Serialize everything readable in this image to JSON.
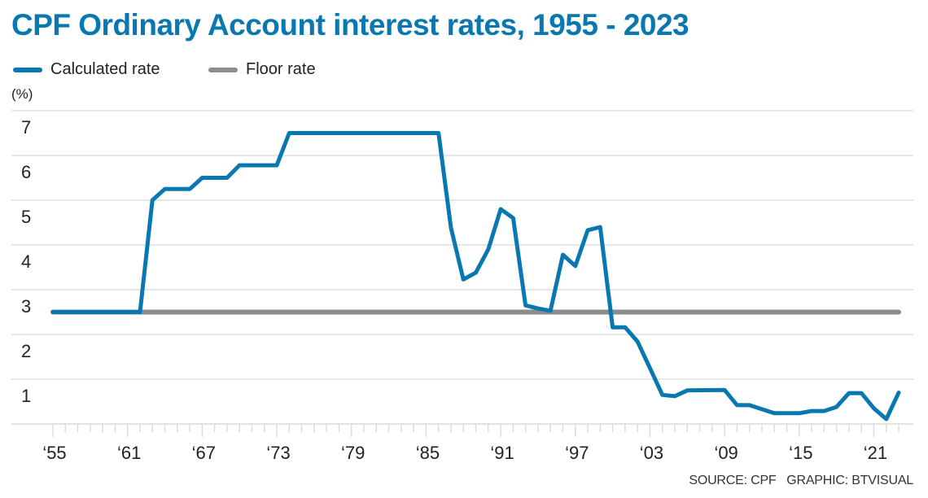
{
  "chart_data": {
    "type": "line",
    "title": "CPF Ordinary Account interest rates, 1955 - 2023",
    "ylabel": "(%)",
    "xlabel": "",
    "ylim": [
      0,
      7
    ],
    "xlim": [
      1955,
      2023
    ],
    "grid": true,
    "legend_position": "top-left",
    "y_ticks": [
      "1",
      "2",
      "3",
      "4",
      "5",
      "6",
      "7"
    ],
    "y_tick_values": [
      1,
      2,
      3,
      4,
      5,
      6,
      7
    ],
    "x_ticks": [
      "‘55",
      "‘61",
      "‘67",
      "‘73",
      "‘79",
      "‘85",
      "‘91",
      "‘97",
      "‘03",
      "‘09",
      "‘15",
      "‘21"
    ],
    "x_tick_values": [
      1955,
      1961,
      1967,
      1973,
      1979,
      1985,
      1991,
      1997,
      2003,
      2009,
      2015,
      2021
    ],
    "series": [
      {
        "name": "Calculated rate",
        "color": "#0a78b0",
        "x": [
          1955,
          1962,
          1963,
          1964,
          1966,
          1967,
          1969,
          1970,
          1973,
          1974,
          1986,
          1987,
          1988,
          1989,
          1990,
          1991,
          1992,
          1993,
          1994,
          1995,
          1996,
          1997,
          1998,
          1999,
          2000,
          2001,
          2002,
          2003,
          2004,
          2005,
          2006,
          2009,
          2010,
          2011,
          2012,
          2013,
          2014,
          2015,
          2016,
          2017,
          2018,
          2019,
          2020,
          2021,
          2022,
          2023
        ],
        "y": [
          2.5,
          2.5,
          5.0,
          5.25,
          5.25,
          5.5,
          5.5,
          5.78,
          5.78,
          6.5,
          6.5,
          4.38,
          3.23,
          3.38,
          3.9,
          4.8,
          4.6,
          2.65,
          2.58,
          2.53,
          3.78,
          3.53,
          4.33,
          4.4,
          2.16,
          2.16,
          1.84,
          1.25,
          0.65,
          0.62,
          0.75,
          0.76,
          0.42,
          0.42,
          0.33,
          0.24,
          0.24,
          0.24,
          0.29,
          0.29,
          0.38,
          0.69,
          0.69,
          0.35,
          0.11,
          0.7
        ]
      },
      {
        "name": "Floor rate",
        "color": "#8c8c8c",
        "x": [
          1955,
          2023
        ],
        "y": [
          2.5,
          2.5
        ]
      }
    ]
  },
  "source": "SOURCE: CPF   GRAPHIC: BTVISUAL"
}
